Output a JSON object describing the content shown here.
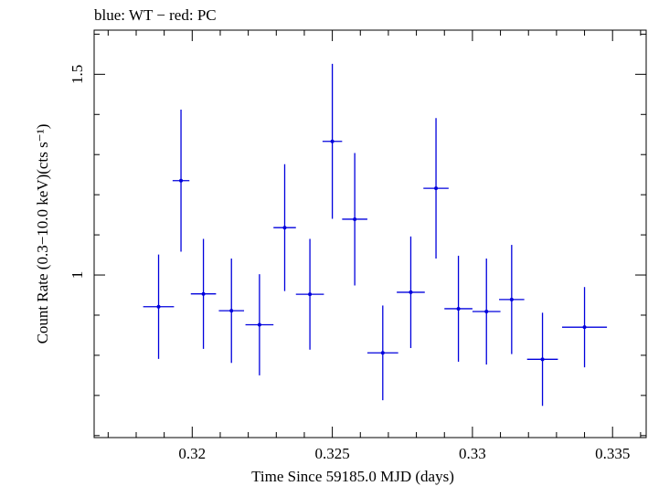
{
  "chart_data": {
    "type": "scatter",
    "title": "blue: WT − red: PC",
    "xlabel": "Time Since 59185.0 MJD (days)",
    "ylabel": "Count Rate (0.3−10.0 keV)(cts s⁻¹)",
    "xlim": [
      0.3165,
      0.3362
    ],
    "ylim": [
      0.595,
      1.61
    ],
    "xticks": [
      0.32,
      0.325,
      0.33,
      0.335
    ],
    "xtick_labels": [
      "0.32",
      "0.325",
      "0.33",
      "0.335"
    ],
    "yticks": [
      1.0,
      1.5
    ],
    "ytick_labels": [
      "1",
      "1.5"
    ],
    "grid": false,
    "series": [
      {
        "color": "#0000dd",
        "points": [
          {
            "x": 0.3188,
            "xerr": 0.00055,
            "y": 0.921,
            "yerr": 0.13
          },
          {
            "x": 0.3196,
            "xerr": 0.0003,
            "y": 1.235,
            "yerr": 0.177
          },
          {
            "x": 0.3204,
            "xerr": 0.00045,
            "y": 0.953,
            "yerr": 0.137
          },
          {
            "x": 0.3214,
            "xerr": 0.00045,
            "y": 0.911,
            "yerr": 0.13
          },
          {
            "x": 0.3224,
            "xerr": 0.0005,
            "y": 0.876,
            "yerr": 0.126
          },
          {
            "x": 0.3233,
            "xerr": 0.0004,
            "y": 1.118,
            "yerr": 0.158
          },
          {
            "x": 0.3242,
            "xerr": 0.0005,
            "y": 0.952,
            "yerr": 0.138
          },
          {
            "x": 0.325,
            "xerr": 0.00035,
            "y": 1.333,
            "yerr": 0.193
          },
          {
            "x": 0.3258,
            "xerr": 0.00045,
            "y": 1.139,
            "yerr": 0.165
          },
          {
            "x": 0.3268,
            "xerr": 0.00055,
            "y": 0.806,
            "yerr": 0.118
          },
          {
            "x": 0.3278,
            "xerr": 0.0005,
            "y": 0.957,
            "yerr": 0.139
          },
          {
            "x": 0.3287,
            "xerr": 0.00045,
            "y": 1.216,
            "yerr": 0.175
          },
          {
            "x": 0.3295,
            "xerr": 0.0005,
            "y": 0.916,
            "yerr": 0.132
          },
          {
            "x": 0.3305,
            "xerr": 0.0005,
            "y": 0.909,
            "yerr": 0.132
          },
          {
            "x": 0.3314,
            "xerr": 0.00045,
            "y": 0.939,
            "yerr": 0.136
          },
          {
            "x": 0.3325,
            "xerr": 0.00055,
            "y": 0.79,
            "yerr": 0.116
          },
          {
            "x": 0.334,
            "xerr": 0.0008,
            "y": 0.87,
            "yerr": 0.1
          }
        ]
      }
    ]
  }
}
